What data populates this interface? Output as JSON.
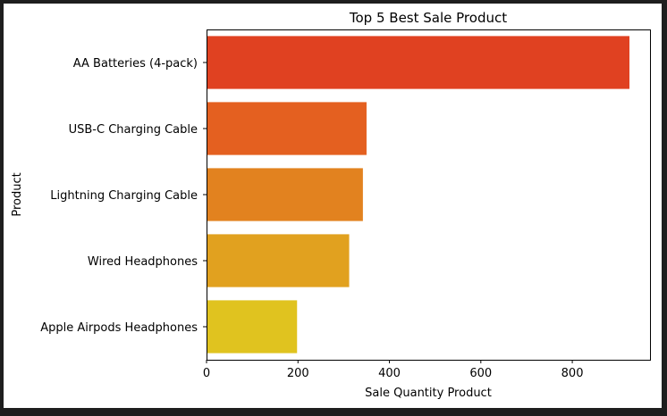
{
  "chart_data": {
    "type": "bar",
    "orientation": "horizontal",
    "title": "Top 5 Best Sale  Product",
    "xlabel": "Sale Quantity Product",
    "ylabel": "Product",
    "categories": [
      "AA Batteries (4-pack)",
      "USB-C Charging Cable",
      "Lightning Charging Cable",
      "Wired Headphones",
      "Apple Airpods Headphones"
    ],
    "values": [
      925,
      350,
      342,
      312,
      198
    ],
    "colors": [
      "#e04121",
      "#e46020",
      "#e2821f",
      "#e1a11f",
      "#e0c31f"
    ],
    "xlim": [
      0,
      970
    ],
    "xticks": [
      0,
      200,
      400,
      600,
      800
    ],
    "grid": false,
    "legend": "none"
  }
}
